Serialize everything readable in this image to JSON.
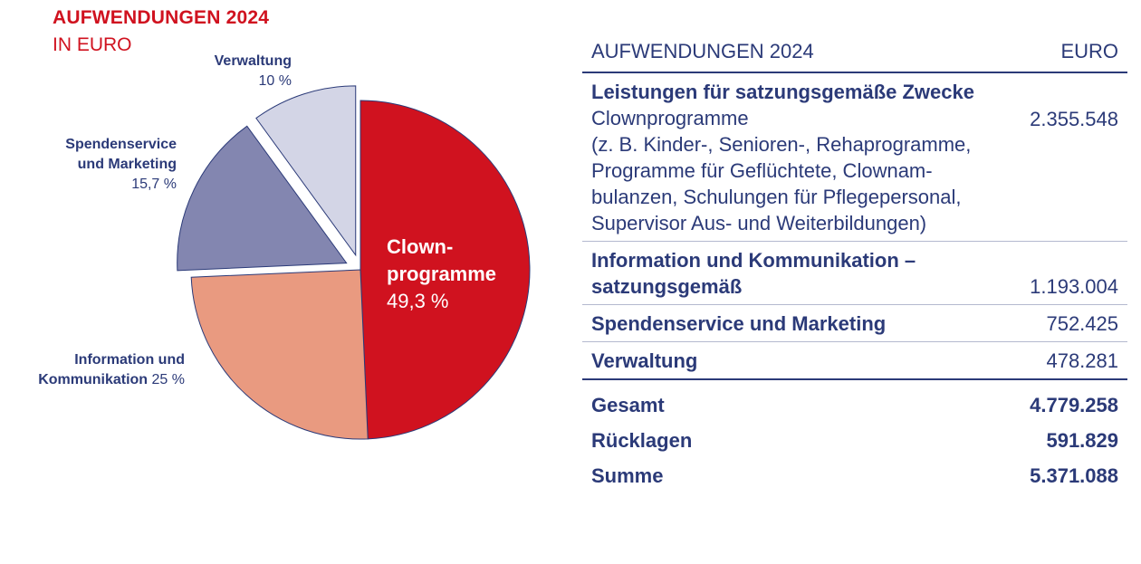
{
  "chart_data": {
    "type": "pie",
    "title": "AUFWENDUNGEN 2024",
    "subtitle": "IN EURO",
    "slices": [
      {
        "label": "Clown-programme",
        "label_line1": "Clown-",
        "label_line2": "programme",
        "value": 49.3,
        "value_text": "49,3 %",
        "color": "#d0121f",
        "exploded": false
      },
      {
        "label": "Information und Kommunikation",
        "label_line1": "Information und",
        "label_line2": "Kommunikation",
        "value": 25,
        "value_text": "25 %",
        "color": "#e99a80",
        "exploded": false
      },
      {
        "label": "Spendenservice und Marketing",
        "label_line1": "Spendenservice",
        "label_line2": "und Marketing",
        "value": 15.7,
        "value_text": "15,7 %",
        "color": "#8386b0",
        "exploded": true
      },
      {
        "label": "Verwaltung",
        "label_line1": "Verwaltung",
        "label_line2": "",
        "value": 10,
        "value_text": "10 %",
        "color": "#d3d5e6",
        "exploded": true
      }
    ],
    "outline_color": "#2b3a78"
  },
  "table": {
    "header": {
      "label": "AUFWENDUNGEN 2024",
      "unit": "EURO"
    },
    "rows": [
      {
        "title": "Leistungen für satzungsgemäße Zwecke",
        "desc_lines": [
          "Clownprogramme",
          "(z. B. Kinder-, Senioren-, Rehaprogramme,",
          "Programme für Geflüchtete, Clownam-",
          "bulanzen, Schulungen für Pflegepersonal,",
          "Supervisor Aus- und Weiterbildungen)"
        ],
        "value": "2.355.548"
      },
      {
        "title_line1": "Information und Kommunikation –",
        "title_line2": "satzungsgemäß",
        "value": "1.193.004"
      },
      {
        "title": "Spendenservice und Marketing",
        "value": "752.425"
      },
      {
        "title": "Verwaltung",
        "value": "478.281"
      }
    ],
    "totals": [
      {
        "label": "Gesamt",
        "value": "4.779.258"
      },
      {
        "label": "Rücklagen",
        "value": "591.829"
      },
      {
        "label": "Summe",
        "value": "5.371.088"
      }
    ]
  }
}
